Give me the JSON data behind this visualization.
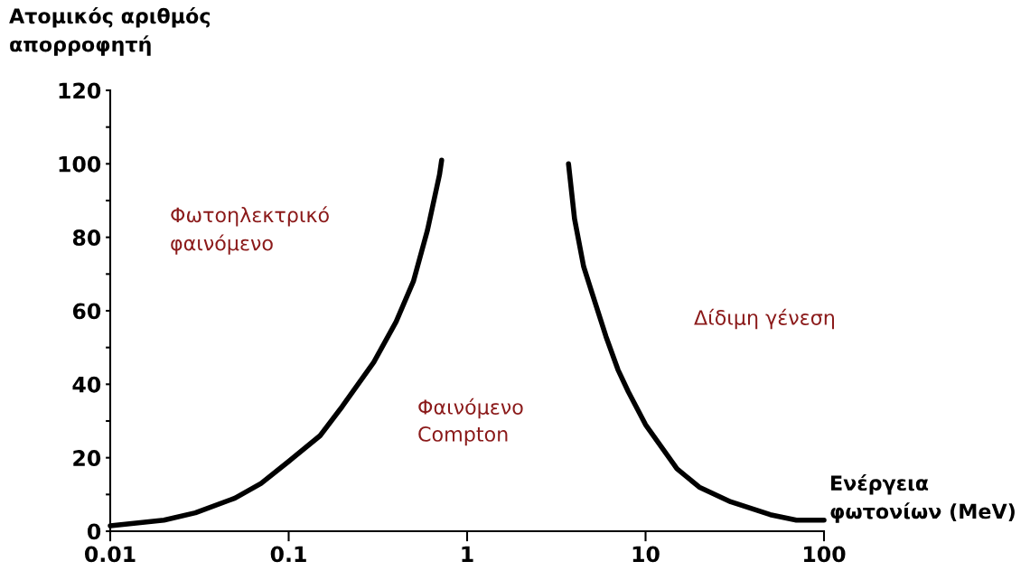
{
  "chart_data": {
    "type": "line",
    "xlabel": "Ενέργεια\nφωτονίων (MeV)",
    "ylabel": "Ατομικός αριθμός\nαπορροφητή",
    "log": "x",
    "xlim": [
      0.01,
      100
    ],
    "xticks": [
      0.01,
      0.1,
      1,
      10,
      100
    ],
    "ylim": [
      0,
      120
    ],
    "yticks": [
      0,
      {
        "value": 10,
        "label": null
      },
      20,
      {
        "value": 30,
        "label": null
      },
      40,
      {
        "value": 50,
        "label": null
      },
      60,
      {
        "value": 70,
        "label": null
      },
      80,
      {
        "value": 90,
        "label": null
      },
      100,
      {
        "value": 110,
        "label": null
      },
      120
    ],
    "grid": false,
    "marker": "none",
    "line_style": "solid",
    "series": [
      {
        "color": "#000000",
        "x": [
          0.01,
          0.02,
          0.03,
          0.05,
          0.07,
          0.1,
          0.15,
          0.2,
          0.3,
          0.4,
          0.5,
          0.6,
          0.7,
          0.72
        ],
        "values": [
          1.5,
          3,
          5,
          9,
          13,
          19,
          26,
          34,
          46,
          57,
          68,
          82,
          97,
          101
        ]
      },
      {
        "color": "#000000",
        "x": [
          3.7,
          4,
          4.5,
          5,
          6,
          7,
          8,
          10,
          15,
          20,
          30,
          50,
          70,
          100
        ],
        "values": [
          100,
          85,
          72,
          65,
          53,
          44,
          38,
          29,
          17,
          12,
          8,
          4.5,
          3,
          3
        ]
      }
    ],
    "annotations": [
      "Φωτοηλεκτρικό\nφαινόμενο",
      "Φαινόμενο\nCompton",
      "Δίδιμη γένεση"
    ]
  }
}
